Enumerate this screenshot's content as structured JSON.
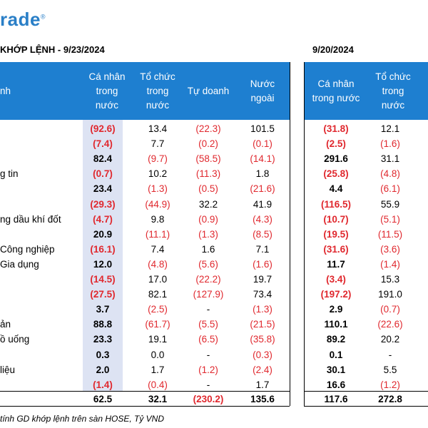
{
  "logo": {
    "text": "rade",
    "mark": "®"
  },
  "titles": {
    "left": "KHỚP LỆNH - 9/23/2024",
    "right": "9/20/2024"
  },
  "header_left": [
    "nh",
    "Cá nhân\ntrong\nnước",
    "Tổ chức\ntrong\nnước",
    "Tự doanh",
    "Nước\nngoài"
  ],
  "header_right": [
    "Cá nhân\ntrong nước",
    "Tổ chức\ntrong\nnước"
  ],
  "rows": [
    {
      "label": "",
      "v": [
        "(92.6)",
        "13.4",
        "(22.3)",
        "101.5"
      ],
      "r": [
        "(31.8)",
        "12.1"
      ]
    },
    {
      "label": "",
      "v": [
        "(7.4)",
        "7.7",
        "(0.2)",
        "(0.1)"
      ],
      "r": [
        "(2.5)",
        "(1.6)"
      ]
    },
    {
      "label": "",
      "v": [
        "82.4",
        "(9.7)",
        "(58.5)",
        "(14.1)"
      ],
      "r": [
        "291.6",
        "31.1"
      ]
    },
    {
      "label": "g tin",
      "v": [
        "(0.7)",
        "10.2",
        "(11.3)",
        "1.8"
      ],
      "r": [
        "(25.8)",
        "(4.8)"
      ]
    },
    {
      "label": "",
      "v": [
        "23.4",
        "(1.3)",
        "(0.5)",
        "(21.6)"
      ],
      "r": [
        "4.4",
        "(6.1)"
      ]
    },
    {
      "label": "",
      "v": [
        "(29.3)",
        "(44.9)",
        "32.2",
        "41.9"
      ],
      "r": [
        "(116.5)",
        "55.9"
      ]
    },
    {
      "label": "ng dầu khí đốt",
      "v": [
        "(4.7)",
        "9.8",
        "(0.9)",
        "(4.3)"
      ],
      "r": [
        "(10.7)",
        "(5.1)"
      ]
    },
    {
      "label": "",
      "v": [
        "20.9",
        "(11.1)",
        "(1.3)",
        "(8.5)"
      ],
      "r": [
        "(19.5)",
        "(11.5)"
      ]
    },
    {
      "label": "Công nghiệp",
      "v": [
        "(16.1)",
        "7.4",
        "1.6",
        "7.1"
      ],
      "r": [
        "(31.6)",
        "(3.6)"
      ]
    },
    {
      "label": "Gia dụng",
      "v": [
        "12.0",
        "(4.8)",
        "(5.6)",
        "(1.6)"
      ],
      "r": [
        "11.7",
        "(1.4)"
      ]
    },
    {
      "label": "",
      "v": [
        "(14.5)",
        "17.0",
        "(22.2)",
        "19.7"
      ],
      "r": [
        "(3.4)",
        "15.3"
      ]
    },
    {
      "label": "",
      "v": [
        "(27.5)",
        "82.1",
        "(127.9)",
        "73.4"
      ],
      "r": [
        "(197.2)",
        "191.0"
      ]
    },
    {
      "label": "",
      "v": [
        "3.7",
        "(2.5)",
        "-",
        "(1.3)"
      ],
      "r": [
        "2.9",
        "(0.7)"
      ]
    },
    {
      "label": "ản",
      "v": [
        "88.8",
        "(61.7)",
        "(5.5)",
        "(21.5)"
      ],
      "r": [
        "110.1",
        "(22.6)"
      ]
    },
    {
      "label": "ồ uống",
      "v": [
        "23.3",
        "19.1",
        "(6.5)",
        "(35.8)"
      ],
      "r": [
        "89.2",
        "20.2"
      ]
    },
    {
      "label": "",
      "v": [
        "0.3",
        "0.0",
        "-",
        "(0.3)"
      ],
      "r": [
        "0.1",
        "-"
      ]
    },
    {
      "label": "liệu",
      "v": [
        "2.0",
        "1.7",
        "(1.2)",
        "(2.4)"
      ],
      "r": [
        "30.1",
        "5.5"
      ]
    },
    {
      "label": "",
      "v": [
        "(1.4)",
        "(0.4)",
        "-",
        "1.7"
      ],
      "r": [
        "16.6",
        "(1.2)"
      ]
    }
  ],
  "total": {
    "v": [
      "62.5",
      "32.1",
      "(230.2)",
      "135.6"
    ],
    "r": [
      "117.6",
      "272.8"
    ]
  },
  "footnote": "tính GD khớp lệnh trên sàn HOSE, Tỷ VND"
}
